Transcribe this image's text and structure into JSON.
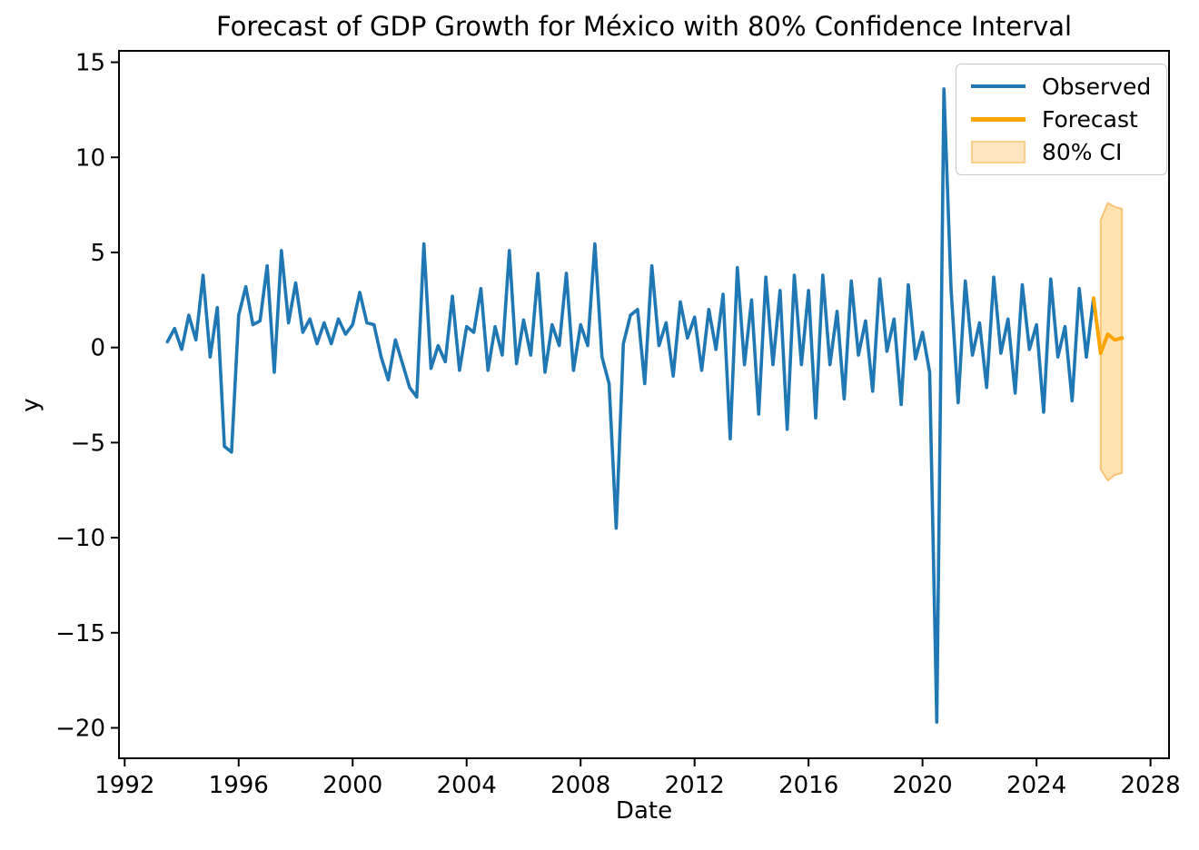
{
  "chart_data": {
    "type": "line",
    "title": "Forecast of GDP Growth for México with 80% Confidence Interval",
    "xlabel": "Date",
    "ylabel": "y",
    "grid": false,
    "xlim": [
      1991.8,
      2028.65
    ],
    "ylim": [
      -21.6,
      15.6
    ],
    "x_ticks": [
      1992,
      1996,
      2000,
      2004,
      2008,
      2012,
      2016,
      2020,
      2024,
      2028
    ],
    "x_tick_labels": [
      "1992",
      "1996",
      "2000",
      "2004",
      "2008",
      "2012",
      "2016",
      "2020",
      "2024",
      "2028"
    ],
    "y_ticks": [
      15,
      10,
      5,
      0,
      -5,
      -10,
      -15,
      -20
    ],
    "y_tick_labels": [
      "15",
      "10",
      "5",
      "0",
      "−5",
      "−10",
      "−15",
      "−20"
    ],
    "colors": {
      "observed": "#1f77b4",
      "forecast": "#ffa500",
      "ci_fill": "rgba(255,166,0,0.30)",
      "ci_edge": "rgba(245,158,40,0.55)",
      "axes": "#000000"
    },
    "legend": {
      "position": "upper right",
      "entries": [
        {
          "label": "Observed",
          "type": "line",
          "color": "#1f77b4"
        },
        {
          "label": "Forecast",
          "type": "line",
          "color": "#ffa500"
        },
        {
          "label": "80% CI",
          "type": "patch",
          "fill": "#fde6bf",
          "edge": "#f9cf8b"
        }
      ]
    },
    "series": {
      "observed": {
        "name": "Observed",
        "frequency": "quarterly",
        "start_period": "1993Q2",
        "x_start_decimal_year": 1993.5,
        "x_step": 0.25,
        "values": [
          0.3,
          1.0,
          -0.1,
          1.7,
          0.4,
          3.8,
          -0.5,
          2.1,
          -5.2,
          -5.5,
          1.7,
          3.2,
          1.2,
          1.4,
          4.3,
          -1.3,
          5.1,
          1.3,
          3.4,
          0.8,
          1.5,
          0.2,
          1.3,
          0.2,
          1.5,
          0.7,
          1.2,
          2.9,
          1.3,
          1.2,
          -0.5,
          -1.7,
          0.4,
          -0.85,
          -2.1,
          -2.6,
          5.45,
          -1.1,
          0.1,
          -0.75,
          2.7,
          -1.2,
          1.1,
          0.8,
          3.1,
          -1.2,
          1.1,
          -0.4,
          5.1,
          -0.85,
          1.45,
          -0.4,
          3.9,
          -1.3,
          1.2,
          0.1,
          3.9,
          -1.2,
          1.2,
          0.1,
          5.45,
          -0.5,
          -1.9,
          -9.5,
          0.2,
          1.7,
          2.0,
          -1.9,
          4.3,
          0.1,
          1.3,
          -1.5,
          2.4,
          0.5,
          1.6,
          -1.2,
          2.0,
          -0.1,
          2.8,
          -4.8,
          4.2,
          -0.9,
          2.5,
          -3.5,
          3.7,
          -0.9,
          3.0,
          -4.3,
          3.8,
          -0.9,
          3.0,
          -3.7,
          3.8,
          -0.9,
          1.9,
          -2.7,
          3.5,
          -0.4,
          1.4,
          -2.3,
          3.6,
          -0.2,
          1.5,
          -3.0,
          3.3,
          -0.6,
          0.8,
          -1.3,
          -19.7,
          13.6,
          3.1,
          -2.9,
          3.5,
          -0.4,
          1.3,
          -2.1,
          3.7,
          -0.3,
          1.5,
          -2.4,
          3.3,
          -0.1,
          1.2,
          -3.4,
          3.6,
          -0.5,
          1.1,
          -2.8,
          3.1,
          -0.5,
          2.6
        ]
      },
      "forecast": {
        "name": "Forecast",
        "frequency": "quarterly",
        "start_period": "2026Q1",
        "anchor_note": "line starts at last observed point",
        "x": [
          2026.0,
          2026.25,
          2026.5,
          2026.75,
          2027.0
        ],
        "values": [
          2.6,
          -0.3,
          0.7,
          0.4,
          0.5
        ]
      },
      "ci_80": {
        "name": "80% CI",
        "frequency": "quarterly",
        "periods": [
          "2026Q1",
          "2026Q2",
          "2026Q3",
          "2026Q4"
        ],
        "x": [
          2026.25,
          2026.5,
          2026.75,
          2027.0
        ],
        "lower": [
          -6.4,
          -7.0,
          -6.7,
          -6.6
        ],
        "upper": [
          6.7,
          7.6,
          7.4,
          7.3
        ]
      }
    }
  }
}
